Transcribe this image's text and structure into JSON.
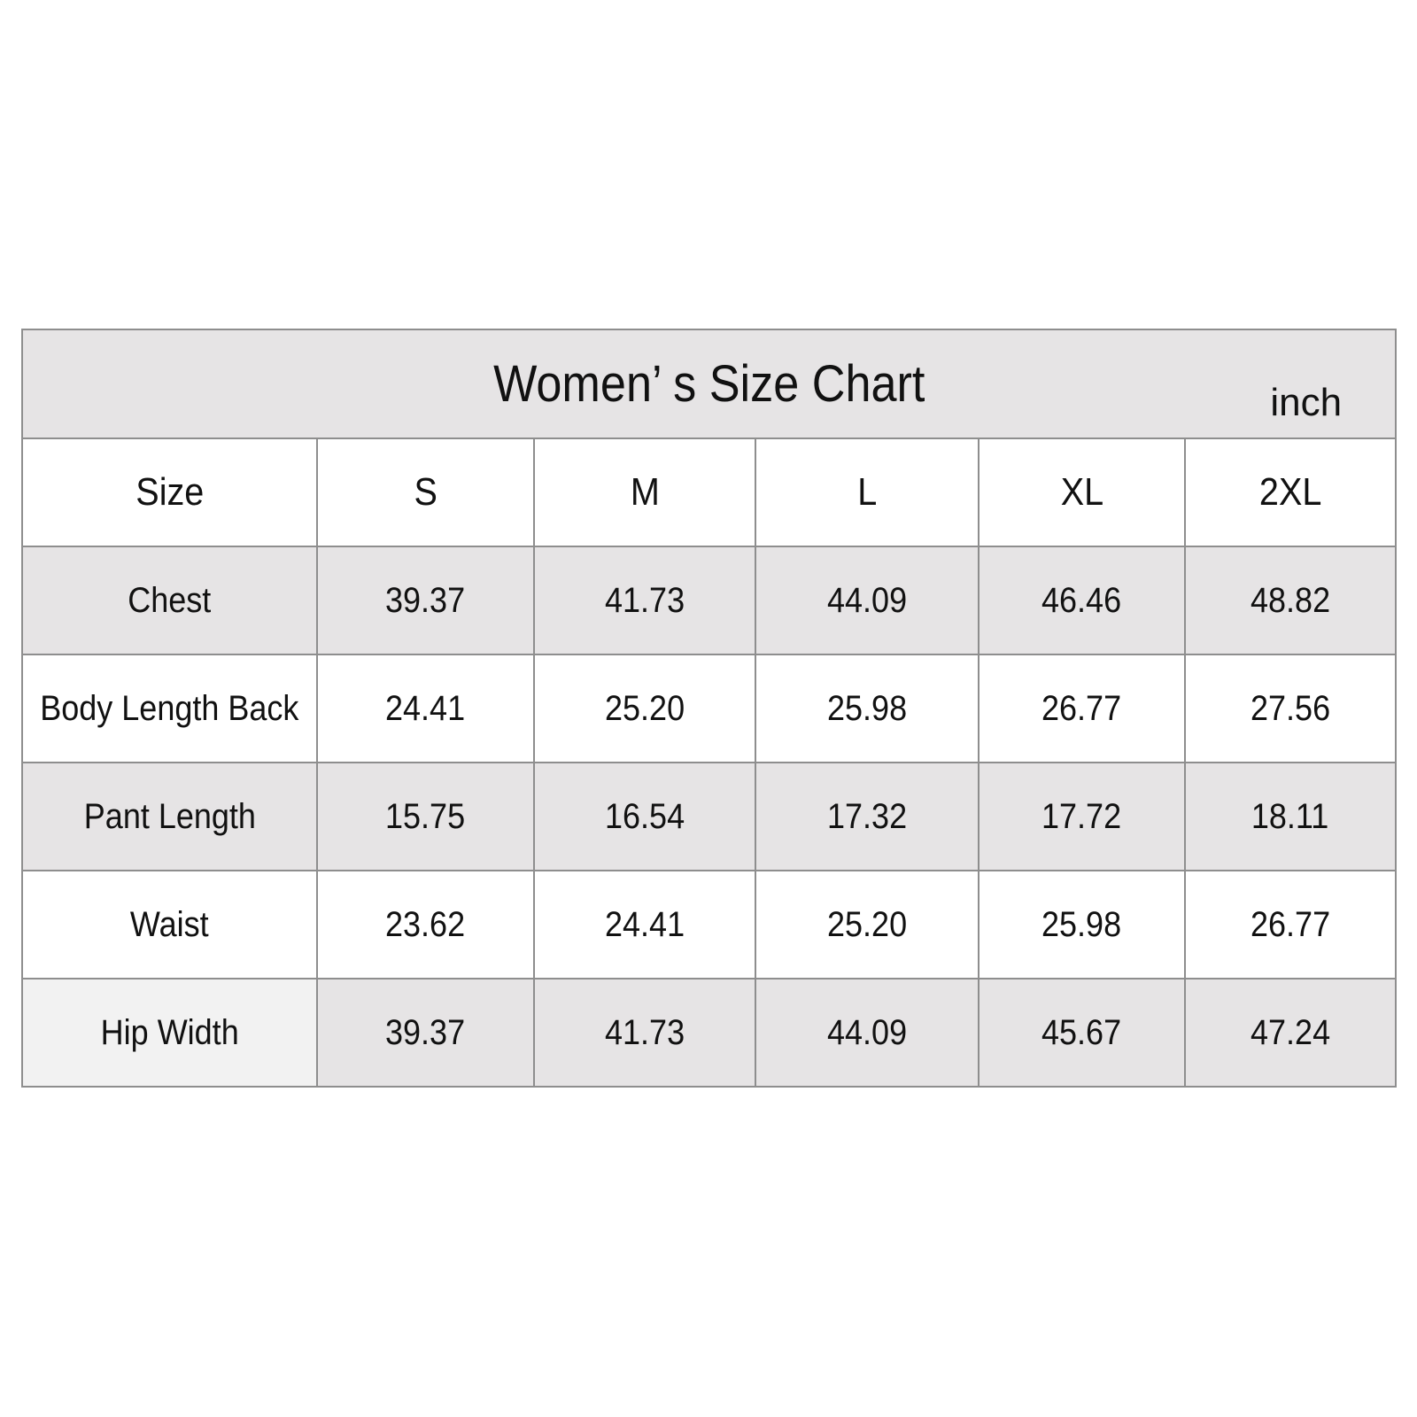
{
  "colors": {
    "shaded_row": "#e6e4e5",
    "border": "#8e8e8e",
    "hip_label_cell": "#f2f2f2",
    "white_row": "#ffffff"
  },
  "chart_data": {
    "type": "table",
    "title": "Women’ s Size Chart",
    "unit": "inch",
    "header_label": "Size",
    "columns": [
      "S",
      "M",
      "L",
      "XL",
      "2XL"
    ],
    "rows": [
      {
        "label": "Chest",
        "values": [
          "39.37",
          "41.73",
          "44.09",
          "46.46",
          "48.82"
        ]
      },
      {
        "label": "Body Length Back",
        "values": [
          "24.41",
          "25.20",
          "25.98",
          "26.77",
          "27.56"
        ]
      },
      {
        "label": "Pant  Length",
        "values": [
          "15.75",
          "16.54",
          "17.32",
          "17.72",
          "18.11"
        ]
      },
      {
        "label": "Waist",
        "values": [
          "23.62",
          "24.41",
          "25.20",
          "25.98",
          "26.77"
        ]
      },
      {
        "label": "Hip Width",
        "values": [
          "39.37",
          "41.73",
          "44.09",
          "45.67",
          "47.24"
        ]
      }
    ]
  }
}
